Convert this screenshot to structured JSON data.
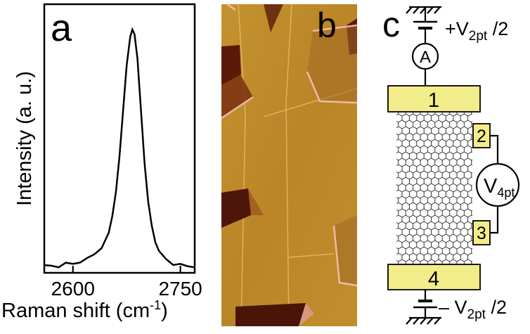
{
  "panel_a": {
    "label": "a",
    "chart_data": {
      "type": "line",
      "xlabel": "Raman shift (cm",
      "xlabel_sup": "-1",
      "xlabel_tail": ")",
      "ylabel": "Intensity (a. u.)",
      "xlim": [
        2560,
        2770
      ],
      "ylim": [
        0,
        1.0
      ],
      "xticks": [
        {
          "value": 2600,
          "label": "2600"
        },
        {
          "value": 2750,
          "label": "2750"
        }
      ],
      "series": [
        {
          "color": "#000000",
          "x": [
            2560,
            2570,
            2580,
            2590,
            2600,
            2610,
            2620,
            2630,
            2640,
            2650,
            2655,
            2660,
            2665,
            2670,
            2675,
            2680,
            2683,
            2686,
            2690,
            2695,
            2700,
            2705,
            2710,
            2715,
            2720,
            2730,
            2740,
            2750,
            2760,
            2770
          ],
          "y": [
            0.01,
            0.012,
            0.01,
            0.02,
            0.02,
            0.03,
            0.04,
            0.06,
            0.09,
            0.15,
            0.22,
            0.32,
            0.47,
            0.66,
            0.85,
            0.97,
            1.0,
            0.98,
            0.88,
            0.66,
            0.44,
            0.28,
            0.18,
            0.11,
            0.07,
            0.04,
            0.02,
            0.015,
            0.01,
            0.01
          ]
        }
      ]
    }
  },
  "panel_b": {
    "label": "b"
  },
  "panel_c": {
    "label": "c",
    "top_voltage_main": "+V",
    "top_voltage_sub": "2pt",
    "top_voltage_tail": " /2",
    "ammeter": "A",
    "contacts": [
      "1",
      "2",
      "3",
      "4"
    ],
    "voltmeter_main": "V",
    "voltmeter_sub": "4pt",
    "bottom_voltage_main": "– V",
    "bottom_voltage_sub": "2pt",
    "bottom_voltage_tail": " /2",
    "colors": {
      "contact_fill": "#f3ec8a",
      "lattice": "#222222"
    }
  }
}
